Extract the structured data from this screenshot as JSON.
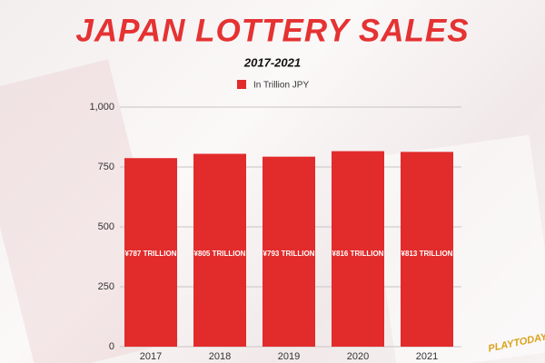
{
  "chart_data": {
    "type": "bar",
    "title": "JAPAN LOTTERY SALES",
    "subtitle": "2017-2021",
    "legend": "In Trillion JPY",
    "categories": [
      "2017",
      "2018",
      "2019",
      "2020",
      "2021"
    ],
    "values": [
      787,
      805,
      793,
      816,
      813
    ],
    "value_labels": [
      "¥787 TRILLION",
      "¥805 TRILLION",
      "¥793 TRILLION",
      "¥816 TRILLION",
      "¥813 TRILLION"
    ],
    "color": "#e22b2b",
    "ylim": [
      0,
      1000
    ],
    "yticks": [
      0,
      250,
      500,
      750,
      {
        "value": 1000,
        "label": "1,000"
      }
    ],
    "grid": true,
    "logo": "PLAYTODAY"
  }
}
